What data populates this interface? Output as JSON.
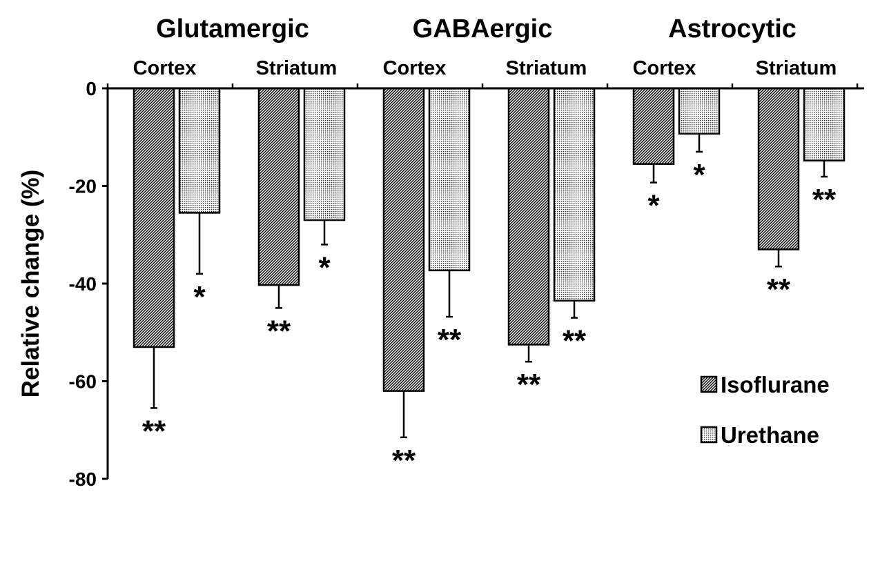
{
  "chart_data": {
    "type": "bar",
    "title": "",
    "xlabel": "",
    "ylabel": "Relative change (%)",
    "ylim": [
      -80,
      0
    ],
    "yticks": [
      0,
      -20,
      -40,
      -60,
      -80
    ],
    "groups": [
      {
        "name": "Glutamergic",
        "regions": [
          "Cortex",
          "Striatum"
        ]
      },
      {
        "name": "GABAergic",
        "regions": [
          "Cortex",
          "Striatum"
        ]
      },
      {
        "name": "Astrocytic",
        "regions": [
          "Cortex",
          "Striatum"
        ]
      }
    ],
    "categories": [
      "Glutamergic Cortex",
      "Glutamergic Striatum",
      "GABAergic Cortex",
      "GABAergic Striatum",
      "Astrocytic Cortex",
      "Astrocytic Striatum"
    ],
    "series": [
      {
        "name": "Isoflurane",
        "pattern": "diagonal-hatch",
        "values": [
          -53,
          -40.3,
          -62,
          -52.5,
          -15.5,
          -33
        ],
        "errors": [
          12.5,
          4.7,
          9.5,
          3.5,
          3.8,
          3.5
        ],
        "significance": [
          "**",
          "**",
          "**",
          "**",
          "*",
          "**"
        ]
      },
      {
        "name": "Urethane",
        "pattern": "dotted",
        "values": [
          -25.5,
          -27,
          -37.3,
          -43.5,
          -9.3,
          -14.8
        ],
        "errors": [
          12.5,
          5,
          9.5,
          3.5,
          3.7,
          3.3
        ],
        "significance": [
          "*",
          "*",
          "**",
          "**",
          "*",
          "**"
        ]
      }
    ],
    "legend": {
      "position": "bottom-right",
      "entries": [
        "Isoflurane",
        "Urethane"
      ]
    },
    "grid": false
  }
}
